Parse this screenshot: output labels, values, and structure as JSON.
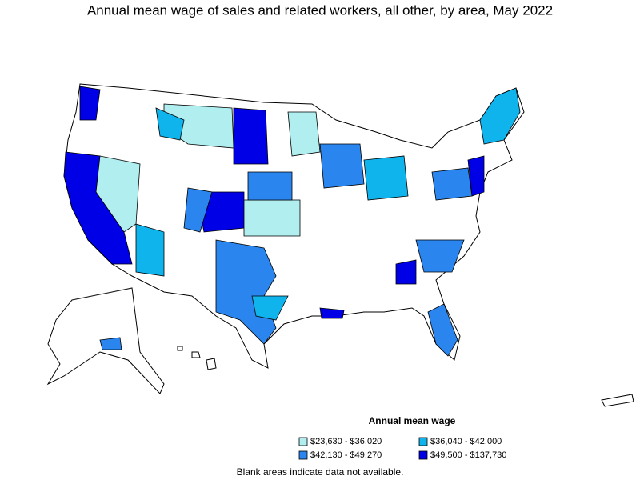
{
  "title": "Annual mean wage of sales and related workers, all other, by area, May 2022",
  "legend": {
    "title": "Annual mean wage",
    "items": [
      {
        "label": "$23,630 - $36,020",
        "color": "#b0eef0"
      },
      {
        "label": "$36,040 - $42,000",
        "color": "#10b4ec"
      },
      {
        "label": "$42,130 - $49,270",
        "color": "#2a86ee"
      },
      {
        "label": "$49,500 - $137,730",
        "color": "#0000e6"
      }
    ]
  },
  "note": "Blank areas indicate data not available."
}
